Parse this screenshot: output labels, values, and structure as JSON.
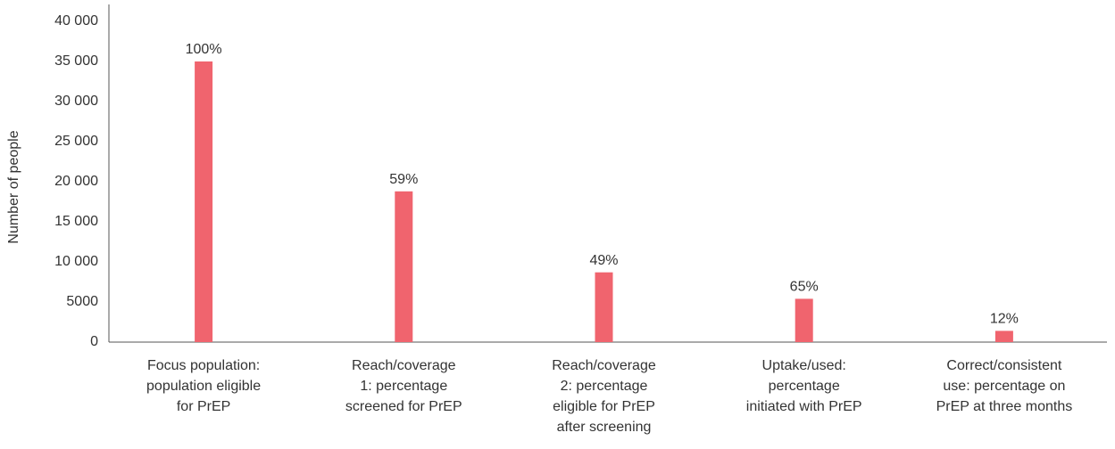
{
  "chart_data": {
    "type": "bar",
    "y_label": "Number of people",
    "categories": [
      [
        "Focus population:",
        "population eligible",
        "for PrEP"
      ],
      [
        "Reach/coverage",
        "1: percentage",
        "screened for PrEP"
      ],
      [
        "Reach/coverage",
        "2: percentage",
        "eligible for PrEP",
        "after screening"
      ],
      [
        "Uptake/used:",
        "percentage",
        "initiated with PrEP"
      ],
      [
        "Correct/consistent",
        "use: percentage on",
        "PrEP at three months"
      ]
    ],
    "values": [
      35000,
      18800,
      8700,
      5400,
      1400
    ],
    "annotations": [
      "100%",
      "59%",
      "49%",
      "65%",
      "12%"
    ],
    "color": "#f0646e",
    "ylim": [
      0,
      40000
    ],
    "yticks": [
      0,
      5000,
      {
        "value": 10000,
        "label": "10 000"
      },
      {
        "value": 15000,
        "label": "15 000"
      },
      {
        "value": 20000,
        "label": "20 000"
      },
      {
        "value": 25000,
        "label": "25 000"
      },
      {
        "value": 30000,
        "label": "30 000"
      },
      {
        "value": 35000,
        "label": "35 000"
      },
      {
        "value": 40000,
        "label": "40 000"
      }
    ],
    "grid": false
  }
}
